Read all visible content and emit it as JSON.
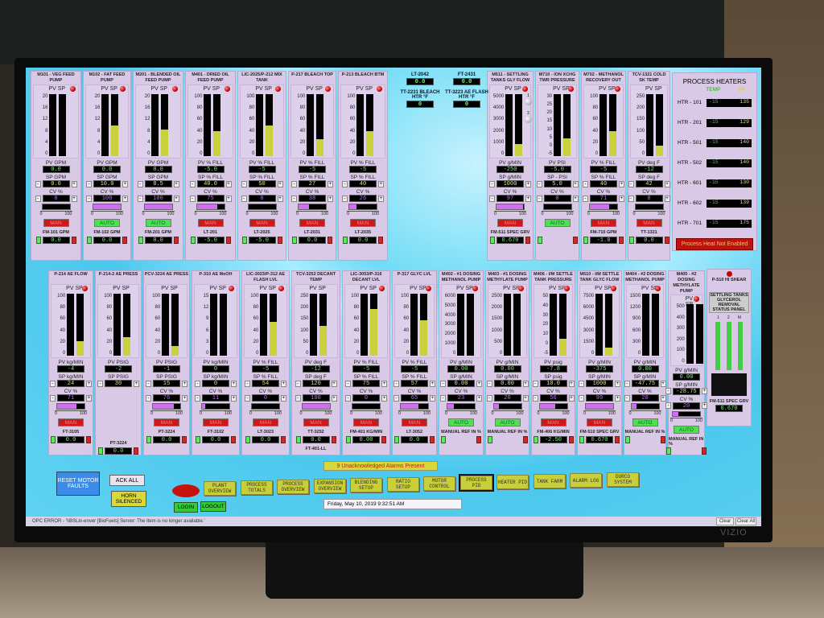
{
  "colors": {
    "screen_bg": "#5fd2f2",
    "panel": "#d9c9e6",
    "man": "#d01818",
    "auto": "#4fe04f",
    "sp_bar": "#c9d23a",
    "cv_bar": "#d070f0"
  },
  "top": {
    "plates": [
      {
        "title": "M101 - VEG FEED PUMP",
        "ticks": [
          "20",
          "16",
          "12",
          "8",
          "4",
          "0"
        ],
        "sp_fill": 0,
        "pv_label": "PV GPM",
        "pv": "0.0",
        "sp_label": "SP GPM",
        "sp": "0.0",
        "cv_label": "CV %",
        "cv": "0",
        "cv_fill": 0,
        "mode": "MAN",
        "tag": "FM-101 GPM",
        "tag_value": "0.0",
        "led": true
      },
      {
        "title": "M102 - FAT FEED PUMP",
        "ticks": [
          "20",
          "16",
          "12",
          "8",
          "4",
          "0"
        ],
        "sp_fill": 0.5,
        "pv_label": "PV GPM",
        "pv": "0.0",
        "sp_label": "SP GPM",
        "sp": "10.0",
        "cv_label": "CV %",
        "cv": "100",
        "cv_fill": 1,
        "mode": "AUTO",
        "tag": "FM-102 GPM",
        "tag_value": "0.0",
        "led": true
      },
      {
        "title": "M201 - BLENDED OIL FEED PUMP",
        "ticks": [
          "20",
          "16",
          "12",
          "8",
          "4",
          "0"
        ],
        "sp_fill": 0.425,
        "pv_label": "PV GPM",
        "pv": "0.0",
        "sp_label": "SP GPM",
        "sp": "8.5",
        "cv_label": "CV %",
        "cv": "100",
        "cv_fill": 1,
        "mode": "AUTO",
        "tag": "FM-201 GPM",
        "tag_value": "0.0",
        "led": true
      },
      {
        "title": "M401 - DRIED OIL FEED PUMP",
        "ticks": [
          "100",
          "80",
          "60",
          "40",
          "20",
          "0"
        ],
        "sp_fill": 0.4,
        "pv_label": "PV % FILL",
        "pv": "-5.0",
        "sp_label": "SP % FILL",
        "sp": "40.0",
        "cv_label": "CV %",
        "cv": "75",
        "cv_fill": 0.75,
        "mode": "MAN",
        "tag": "LT-201",
        "tag_value": "-5.0",
        "led": true
      },
      {
        "title": "LIC-2025/P-212 MIX TANK",
        "ticks": [
          "100",
          "80",
          "60",
          "40",
          "20",
          "0"
        ],
        "sp_fill": 0.5,
        "pv_label": "PV % FILL",
        "pv": "-5",
        "sp_label": "SP % FILL",
        "sp": "50",
        "cv_label": "CV %",
        "cv": "0",
        "cv_fill": 0,
        "mode": "MAN",
        "tag": "LT-2025",
        "tag_value": "-5.0",
        "led": true
      },
      {
        "title": "P-217 BLEACH TOP",
        "ticks": [
          "100",
          "80",
          "60",
          "40",
          "20",
          "0"
        ],
        "sp_fill": 0.27,
        "pv_label": "PV % FILL",
        "pv": "-5",
        "sp_label": "SP % FILL",
        "sp": "27",
        "cv_label": "CV %",
        "cv": "38",
        "cv_fill": 0.38,
        "mode": "MAN",
        "tag": "LT-2031",
        "tag_value": "0.0",
        "led": true
      },
      {
        "title": "P-213 BLEACH BTM",
        "ticks": [
          "100",
          "80",
          "60",
          "40",
          "20",
          "0"
        ],
        "sp_fill": 0.4,
        "pv_label": "PV % FILL",
        "pv": "-5",
        "sp_label": "SP % FILL",
        "sp": "40",
        "cv_label": "CV %",
        "cv": "26",
        "cv_fill": 0.26,
        "mode": "MAN",
        "tag": "LT-2035",
        "tag_value": "0.0",
        "led": true
      },
      {
        "title": "M511 - SETTLING TANKS GLY FLOW",
        "ticks": [
          "5000",
          "4000",
          "3000",
          "2000",
          "1000",
          "0"
        ],
        "sp_fill": 0.2,
        "pv_label": "PV g/MIN",
        "pv": "-250",
        "sp_label": "SP g/MIN",
        "sp": "1000",
        "cv_label": "CV %",
        "cv": "97",
        "cv_fill": 0.97,
        "mode": "MAN",
        "tag": "FM-511 SPEC GRV",
        "tag_value": "0.670",
        "led": true
      },
      {
        "title": "M710 - ION XCHG TWR PRESSURE",
        "ticks": [
          "30",
          "25",
          "20",
          "15",
          "10",
          "5",
          "0",
          "-5"
        ],
        "sp_fill": 0.29,
        "pv_label": "PV  PSI",
        "pv": "-5.0",
        "sp_label": "SP - PSI",
        "sp": "5.0",
        "cv_label": "CV %",
        "cv": "0",
        "cv_fill": 0,
        "mode": "AUTO",
        "tag": "",
        "tag_value": "",
        "led": true
      },
      {
        "title": "M702 - METHANOL RECOVERY OUT",
        "ticks": [
          "100",
          "80",
          "60",
          "40",
          "20",
          "0"
        ],
        "sp_fill": 0.4,
        "pv_label": "PV % FILL",
        "pv": "-5",
        "sp_label": "SP % FILL",
        "sp": "40",
        "cv_label": "CV %",
        "cv": "71",
        "cv_fill": 0.71,
        "mode": "MAN",
        "tag": "FM-710 GPM",
        "tag_value": "-1.0",
        "led": true
      },
      {
        "title": "TCV-1321 COLD SK TEMP",
        "ticks": [
          "250",
          "200",
          "150",
          "100",
          "50",
          "0"
        ],
        "sp_fill": 0.17,
        "pv_label": "PV deg F",
        "pv": "-12",
        "sp_label": "SP deg F",
        "sp": "42",
        "cv_label": "CV %",
        "cv": "0",
        "cv_fill": 0,
        "mode": "MAN",
        "tag": "TT-1321",
        "tag_value": "0.0",
        "led": false
      }
    ],
    "info": [
      {
        "label": "LT-2042",
        "value": "0.0"
      },
      {
        "label": "FT-2431",
        "value": "0.0"
      },
      {
        "label": "TT-2231 BLEACH HTR °F",
        "value": "0"
      },
      {
        "label": "TT-3223 AE FLASH HTR °F",
        "value": "0"
      }
    ],
    "m511_buttons": [
      "1",
      "2"
    ],
    "heaters": {
      "title": "PROCESS HEATERS",
      "temp_header": "TEMP",
      "sp_header": "SP",
      "rows": [
        {
          "name": "HTR - 101",
          "temp": "-15",
          "sp": "135"
        },
        {
          "name": "HTR - 201",
          "temp": "-15",
          "sp": "129"
        },
        {
          "name": "HTR - 501",
          "temp": "-15",
          "sp": "140"
        },
        {
          "name": "HTR - 502",
          "temp": "-15",
          "sp": "140"
        },
        {
          "name": "HTR - 601",
          "temp": "-15",
          "sp": "130"
        },
        {
          "name": "HTR - 602",
          "temp": "-15",
          "sp": "139"
        },
        {
          "name": "HTR - 701",
          "temp": "-15",
          "sp": "175"
        }
      ],
      "status": "Process Heat Not Enabled"
    }
  },
  "bottom": {
    "plates": [
      {
        "title": "P-214 AE FLOW",
        "ticks": [
          "100",
          "80",
          "60",
          "40",
          "20",
          "0"
        ],
        "sp_fill": 0.24,
        "pv_label": "PV kg/MIN",
        "pv": "-4",
        "sp_label": "SP kg/MIN",
        "sp": "24",
        "cv_label": "CV %",
        "cv": "71",
        "cv_fill": 0.71,
        "mode": "MAN",
        "tag": "FT-3105",
        "tag_value": "0.0",
        "led": true
      },
      {
        "title": "P-214-2 AE PRESS",
        "ticks": [
          "100",
          "80",
          "60",
          "40",
          "20",
          "0"
        ],
        "sp_fill": 0.3,
        "pv_label": "PV PSIG",
        "pv": "-2",
        "sp_label": "SP PSIG",
        "sp": "30",
        "tag": "PT-3224",
        "tag_value": "0.0",
        "led": false
      },
      {
        "title": "PCV-3224 AE PRESS",
        "ticks": [
          "100",
          "80",
          "60",
          "40",
          "20",
          "0"
        ],
        "sp_fill": 0.15,
        "pv_label": "PV PSIG",
        "pv": "-1",
        "sp_label": "SP PSIG",
        "sp": "15",
        "cv_label": "CV %",
        "cv": "76",
        "cv_fill": 0.76,
        "mode": "MAN",
        "tag": "PT-3224",
        "tag_value": "0.0",
        "led": false
      },
      {
        "title": "P-310 AE MeOH",
        "ticks": [
          "15",
          "12",
          "9",
          "6",
          "3",
          "0"
        ],
        "sp_fill": 0,
        "pv_label": "PV kg/MIN",
        "pv": "0",
        "sp_label": "SP kg/MIN",
        "sp": "0",
        "cv_label": "CV %",
        "cv": "11",
        "cv_fill": 0.11,
        "mode": "MAN",
        "tag": "FT-3102",
        "tag_value": "0.0",
        "led": true
      },
      {
        "title": "LIC-3023/P-312 AE FLASH LVL",
        "ticks": [
          "100",
          "80",
          "60",
          "40",
          "20",
          "0"
        ],
        "sp_fill": 0.54,
        "pv_label": "PV % FILL",
        "pv": "-5",
        "sp_label": "SP % FILL",
        "sp": "54",
        "cv_label": "CV %",
        "cv": "0",
        "cv_fill": 0,
        "mode": "MAN",
        "tag": "LT-3023",
        "tag_value": "0.0",
        "led": true
      },
      {
        "title": "TCV-3252 DECANT TEMP",
        "ticks": [
          "250",
          "200",
          "150",
          "100",
          "50",
          "0"
        ],
        "sp_fill": 0.48,
        "pv_label": "PV deg F",
        "pv": "-12",
        "sp_label": "SP deg F",
        "sp": "120",
        "cv_label": "CV %",
        "cv": "100",
        "cv_fill": 1,
        "mode": "MAN",
        "tag": "TT-3252",
        "tag_value": "0.0",
        "led": false,
        "extra": "FT-401-LL"
      },
      {
        "title": "LIC-3053/P-316 DECANT LVL",
        "ticks": [
          "100",
          "80",
          "60",
          "40",
          "20",
          "0"
        ],
        "sp_fill": 0.75,
        "pv_label": "PV % FILL",
        "pv": "-5",
        "sp_label": "SP % FILL",
        "sp": "75",
        "cv_label": "CV %",
        "cv": "0",
        "cv_fill": 0,
        "mode": "MAN",
        "tag": "FM-401 KG/MIN",
        "tag_value": "0.00",
        "led": true
      },
      {
        "title": "P-317 GLYC LVL",
        "ticks": [
          "100",
          "80",
          "60",
          "40",
          "20",
          "0"
        ],
        "sp_fill": 0.57,
        "pv_label": "PV % FILL",
        "pv": "-5",
        "sp_label": "SP % FILL",
        "sp": "57",
        "cv_label": "CV %",
        "cv": "65",
        "cv_fill": 0.65,
        "mode": "MAN",
        "tag": "LT-3052",
        "tag_value": "0.0",
        "led": true
      },
      {
        "title": "M402 - #1 DOSING METHANOL PUMP",
        "ticks": [
          "6000",
          "5000",
          "4000",
          "3000",
          "2000",
          "1000",
          "0"
        ],
        "sp_fill": 0,
        "pv_label": "PV g/MIN",
        "pv": "0.00",
        "sp_label": "SP g/MIN",
        "sp": "0.00",
        "cv_label": "CV %",
        "cv": "23",
        "cv_fill": 0.23,
        "mode": "AUTO",
        "tag": "MANUAL REF IN %",
        "tag_value": "",
        "led": true
      },
      {
        "title": "M403 - #1 DOSING METHYLATE PUMP",
        "ticks": [
          "2500",
          "2000",
          "1500",
          "1000",
          "500",
          "0"
        ],
        "sp_fill": 0,
        "pv_label": "PV g/MIN",
        "pv": "0.00",
        "sp_label": "SP g/MIN",
        "sp": "0.00",
        "cv_label": "CV %",
        "cv": "20",
        "cv_fill": 0.2,
        "mode": "AUTO",
        "tag": "MANUAL REF IN %",
        "tag_value": "",
        "led": true
      },
      {
        "title": "M406 - I/M SETTLE TANK PRESSURE",
        "ticks": [
          "50",
          "40",
          "30",
          "20",
          "10",
          "0",
          "-5"
        ],
        "sp_fill": 0.27,
        "pv_label": "PV  psig",
        "pv": "-7.8",
        "sp_label": "SP  psig",
        "sp": "10.0",
        "cv_label": "CV %",
        "cv": "56",
        "cv_fill": 0.56,
        "mode": "MAN",
        "tag": "FM-406 KG/MIN",
        "tag_value": "-2.50",
        "led": true
      },
      {
        "title": "M510 - I/M SETTLE TANK GLYC FLOW",
        "ticks": [
          "7500",
          "6000",
          "4500",
          "3000",
          "1500",
          "0"
        ],
        "sp_fill": 0.13,
        "pv_label": "PV g/MIN",
        "pv": "-375",
        "sp_label": "SP g/MIN",
        "sp": "1000",
        "cv_label": "CV %",
        "cv": "99",
        "cv_fill": 0.99,
        "mode": "MAN",
        "tag": "FM-510 SPEC GRV",
        "tag_value": "0.670",
        "led": true
      },
      {
        "title": "M404 - #2 DOSING METHANOL PUMP",
        "ticks": [
          "1500",
          "1200",
          "900",
          "600",
          "300",
          "0"
        ],
        "sp_fill": 0,
        "pv_label": "PV g/MIN",
        "pv": "0.00",
        "sp_label": "SP g/MIN",
        "sp": "-47.75",
        "cv_label": "CV %",
        "cv": "20",
        "cv_fill": 0.2,
        "mode": "AUTO",
        "tag": "MANUAL REF IN %",
        "tag_value": "",
        "led": true
      },
      {
        "title": "M405 - #2 DOSING METHYLATE PUMP",
        "ticks": [
          "500",
          "400",
          "300",
          "200",
          "100",
          "0"
        ],
        "sp_fill": 0,
        "pv_label": "PV g/MIN",
        "pv": "0.00",
        "sp_label": "SP g/MIN",
        "sp": "-28.75",
        "cv_label": "CV %",
        "cv": "20",
        "cv_fill": 0.2,
        "mode": "AUTO",
        "tag": "MANUAL REF IN %",
        "tag_value": "",
        "led": true
      }
    ],
    "status_panel": {
      "title": "P-510 HI SHEAR",
      "subtitle": "SETTLING TANKS GLYCEROL REMOVAL STATUS PANEL",
      "indicators": [
        "1",
        "2",
        "M"
      ],
      "tag": "FM-511 SPEC GRV",
      "tag_value": "0.670"
    }
  },
  "controls": {
    "reset": "RESET MOTOR FAULTS",
    "ack_all": "ACK ALL",
    "horn": "HORN SILENCED",
    "login": "LOGIN",
    "logout": "LOGOUT",
    "alarm_banner": "9 Unacknowledged Alarms Present",
    "datetime": "Friday, May 10, 2019 9:32:51 AM",
    "nav": [
      "PLANT OVERVIEW",
      "PROCESS TOTALS",
      "PROCESS OVERVIEW",
      "EXPANSION OVERVIEW",
      "BLENDING SETUP",
      "RATIO SETUP",
      "MOTOR CONTROL",
      "PROCESS PID",
      "HEATER PID",
      "TANK FARM",
      "ALARM LOG",
      "DURCO SYSTEM"
    ],
    "active_nav": "PROCESS PID"
  },
  "status_bar": {
    "message": "OPC ERROR - '\\\\BSLin-enver [BioFuels] Server: The Item is no longer available.'",
    "clear": "Clear",
    "clear_all": "Clear All"
  },
  "monitor_brand": "VIZIO"
}
